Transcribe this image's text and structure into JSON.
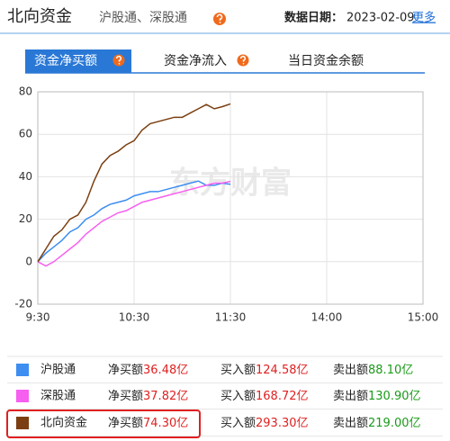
{
  "header": {
    "title": "北向资金",
    "subtitle": "沪股通、深股通",
    "date_label": "数据日期：",
    "date": "2023-02-09",
    "more": "更多"
  },
  "tabs": [
    "资金净买额",
    "资金净流入",
    "当日资金余额"
  ],
  "chart_data": {
    "type": "line",
    "watermark": "东方财富",
    "x": [
      0,
      5,
      10,
      15,
      20,
      25,
      30,
      35,
      40,
      45,
      50,
      55,
      60,
      65,
      70,
      75,
      80,
      85,
      90,
      95,
      100,
      105,
      110,
      115,
      120
    ],
    "xlim": [
      0,
      240
    ],
    "xticks": [
      {
        "value": 0,
        "label": "9:30"
      },
      {
        "value": 60,
        "label": "10:30"
      },
      {
        "value": 120,
        "label": "11:30"
      },
      {
        "value": 180,
        "label": "14:00"
      },
      {
        "value": 240,
        "label": "15:00"
      }
    ],
    "ylim": [
      -20,
      80
    ],
    "yticks": [
      -20,
      0,
      20,
      40,
      60,
      80
    ],
    "grid": true,
    "series": [
      {
        "name": "沪股通",
        "color": "#3d8ef0",
        "values": [
          0,
          4,
          7,
          10,
          14,
          16,
          20,
          22,
          25,
          27,
          28,
          29,
          31,
          32,
          33,
          33,
          34,
          35,
          36,
          37,
          38,
          36,
          36,
          37,
          36.48
        ]
      },
      {
        "name": "深股通",
        "color": "#f65ff0",
        "values": [
          0,
          -2,
          0,
          3,
          6,
          9,
          13,
          16,
          19,
          21,
          23,
          24,
          26,
          28,
          29,
          30,
          31,
          32,
          33,
          34,
          35,
          36,
          37,
          37,
          37.82
        ]
      },
      {
        "name": "北向资金",
        "color": "#7b3f11",
        "values": [
          0,
          6,
          12,
          15,
          20,
          22,
          28,
          38,
          46,
          50,
          52,
          55,
          57,
          62,
          65,
          66,
          67,
          68,
          68,
          70,
          72,
          74,
          72,
          73,
          74.3
        ]
      }
    ]
  },
  "table": {
    "rows": [
      {
        "name": "沪股通",
        "net_label": "净买额",
        "net": "36.48亿",
        "buy_label": "买入额",
        "buy": "124.58亿",
        "sell_label": "卖出额",
        "sell": "88.10亿"
      },
      {
        "name": "深股通",
        "net_label": "净买额",
        "net": "37.82亿",
        "buy_label": "买入额",
        "buy": "168.72亿",
        "sell_label": "卖出额",
        "sell": "130.90亿"
      },
      {
        "name": "北向资金",
        "net_label": "净买额",
        "net": "74.30亿",
        "buy_label": "买入额",
        "buy": "293.30亿",
        "sell_label": "卖出额",
        "sell": "219.00亿"
      }
    ]
  }
}
